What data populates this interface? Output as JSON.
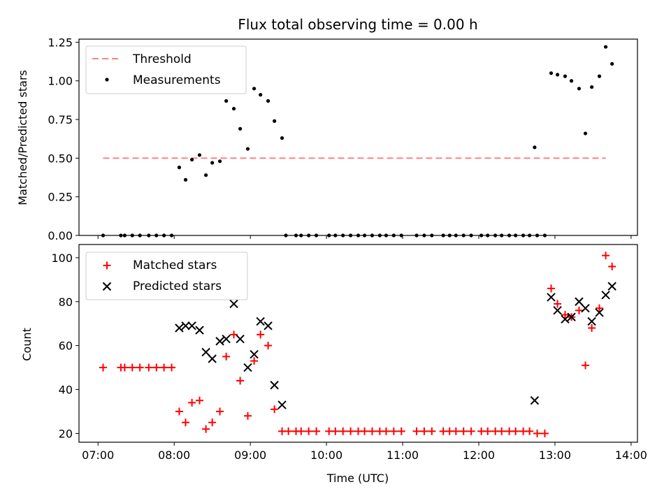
{
  "chart_data": [
    {
      "type": "scatter",
      "title": "Flux total observing time = 0.00 h",
      "xlabel": "",
      "ylabel": "Matched/Predicted stars",
      "xlim": [
        "06:45",
        "14:05"
      ],
      "ylim": [
        0,
        1.27
      ],
      "x_ticks": [
        "07:00",
        "08:00",
        "09:00",
        "10:00",
        "11:00",
        "12:00",
        "13:00",
        "14:00"
      ],
      "y_ticks": [
        "0.00",
        "0.25",
        "0.50",
        "0.75",
        "1.00",
        "1.25"
      ],
      "legend_position": "top-left",
      "series": [
        {
          "name": "Threshold",
          "kind": "dashed-line",
          "color": "#ff8080",
          "points": [
            [
              "07:04",
              0.5
            ],
            [
              "13:40",
              0.5
            ]
          ]
        },
        {
          "name": "Measurements",
          "kind": "dots",
          "color": "#000000",
          "points": [
            [
              "07:04",
              0
            ],
            [
              "07:18",
              0
            ],
            [
              "07:21",
              0
            ],
            [
              "07:27",
              0
            ],
            [
              "07:33",
              0
            ],
            [
              "07:40",
              0
            ],
            [
              "07:46",
              0
            ],
            [
              "07:52",
              0
            ],
            [
              "07:58",
              0
            ],
            [
              "08:04",
              0.44
            ],
            [
              "08:09",
              0.36
            ],
            [
              "08:14",
              0.49
            ],
            [
              "08:20",
              0.52
            ],
            [
              "08:25",
              0.39
            ],
            [
              "08:30",
              0.47
            ],
            [
              "08:36",
              0.48
            ],
            [
              "08:41",
              0.87
            ],
            [
              "08:47",
              0.82
            ],
            [
              "08:52",
              0.69
            ],
            [
              "08:58",
              0.56
            ],
            [
              "09:03",
              0.95
            ],
            [
              "09:08",
              0.91
            ],
            [
              "09:14",
              0.87
            ],
            [
              "09:19",
              0.74
            ],
            [
              "09:25",
              0.63
            ],
            [
              "09:28",
              0
            ],
            [
              "09:36",
              0
            ],
            [
              "09:40",
              0
            ],
            [
              "09:46",
              0
            ],
            [
              "09:52",
              0
            ],
            [
              "10:02",
              0
            ],
            [
              "10:07",
              0
            ],
            [
              "10:13",
              0
            ],
            [
              "10:19",
              0
            ],
            [
              "10:25",
              0
            ],
            [
              "10:30",
              0
            ],
            [
              "10:36",
              0
            ],
            [
              "10:42",
              0
            ],
            [
              "10:47",
              0
            ],
            [
              "10:53",
              0
            ],
            [
              "10:59",
              0
            ],
            [
              "11:11",
              0
            ],
            [
              "11:17",
              0
            ],
            [
              "11:23",
              0
            ],
            [
              "11:32",
              0
            ],
            [
              "11:37",
              0
            ],
            [
              "11:42",
              0
            ],
            [
              "11:48",
              0
            ],
            [
              "11:54",
              0
            ],
            [
              "12:02",
              0
            ],
            [
              "12:07",
              0
            ],
            [
              "12:13",
              0
            ],
            [
              "12:18",
              0
            ],
            [
              "12:24",
              0
            ],
            [
              "12:29",
              0
            ],
            [
              "12:35",
              0
            ],
            [
              "12:40",
              0
            ],
            [
              "12:46",
              0
            ],
            [
              "12:52",
              0
            ],
            [
              "12:44",
              0.57
            ],
            [
              "12:57",
              1.05
            ],
            [
              "13:02",
              1.04
            ],
            [
              "13:08",
              1.03
            ],
            [
              "13:13",
              1.0
            ],
            [
              "13:19",
              0.95
            ],
            [
              "13:24",
              0.66
            ],
            [
              "13:29",
              0.96
            ],
            [
              "13:35",
              1.03
            ],
            [
              "13:40",
              1.22
            ],
            [
              "13:45",
              1.11
            ]
          ]
        }
      ]
    },
    {
      "type": "scatter",
      "xlabel": "Time (UTC)",
      "ylabel": "Count",
      "xlim": [
        "06:45",
        "14:05"
      ],
      "ylim": [
        16,
        106
      ],
      "x_ticks": [
        "07:00",
        "08:00",
        "09:00",
        "10:00",
        "11:00",
        "12:00",
        "13:00",
        "14:00"
      ],
      "y_ticks": [
        "20",
        "40",
        "60",
        "80",
        "100"
      ],
      "legend_position": "top-left",
      "series": [
        {
          "name": "Matched stars",
          "kind": "plus",
          "color": "#ff0000",
          "points": [
            [
              "07:04",
              50
            ],
            [
              "07:18",
              50
            ],
            [
              "07:21",
              50
            ],
            [
              "07:27",
              50
            ],
            [
              "07:33",
              50
            ],
            [
              "07:40",
              50
            ],
            [
              "07:46",
              50
            ],
            [
              "07:52",
              50
            ],
            [
              "07:58",
              50
            ],
            [
              "08:04",
              30
            ],
            [
              "08:09",
              25
            ],
            [
              "08:14",
              34
            ],
            [
              "08:20",
              35
            ],
            [
              "08:25",
              22
            ],
            [
              "08:30",
              25
            ],
            [
              "08:36",
              30
            ],
            [
              "08:41",
              55
            ],
            [
              "08:47",
              65
            ],
            [
              "08:52",
              44
            ],
            [
              "08:58",
              28
            ],
            [
              "09:03",
              53
            ],
            [
              "09:08",
              65
            ],
            [
              "09:14",
              60
            ],
            [
              "09:19",
              31
            ],
            [
              "09:25",
              21
            ],
            [
              "09:30",
              21
            ],
            [
              "09:36",
              21
            ],
            [
              "09:40",
              21
            ],
            [
              "09:46",
              21
            ],
            [
              "09:52",
              21
            ],
            [
              "10:02",
              21
            ],
            [
              "10:07",
              21
            ],
            [
              "10:13",
              21
            ],
            [
              "10:19",
              21
            ],
            [
              "10:25",
              21
            ],
            [
              "10:30",
              21
            ],
            [
              "10:36",
              21
            ],
            [
              "10:42",
              21
            ],
            [
              "10:47",
              21
            ],
            [
              "10:53",
              21
            ],
            [
              "10:59",
              21
            ],
            [
              "11:11",
              21
            ],
            [
              "11:17",
              21
            ],
            [
              "11:23",
              21
            ],
            [
              "11:32",
              21
            ],
            [
              "11:37",
              21
            ],
            [
              "11:42",
              21
            ],
            [
              "11:48",
              21
            ],
            [
              "11:54",
              21
            ],
            [
              "12:02",
              21
            ],
            [
              "12:07",
              21
            ],
            [
              "12:13",
              21
            ],
            [
              "12:18",
              21
            ],
            [
              "12:24",
              21
            ],
            [
              "12:29",
              21
            ],
            [
              "12:35",
              21
            ],
            [
              "12:40",
              21
            ],
            [
              "12:46",
              20
            ],
            [
              "12:52",
              20
            ],
            [
              "12:57",
              86
            ],
            [
              "13:02",
              79
            ],
            [
              "13:08",
              74
            ],
            [
              "13:13",
              73
            ],
            [
              "13:19",
              76
            ],
            [
              "13:24",
              51
            ],
            [
              "13:29",
              68
            ],
            [
              "13:35",
              77
            ],
            [
              "13:40",
              101
            ],
            [
              "13:45",
              96
            ]
          ]
        },
        {
          "name": "Predicted stars",
          "kind": "x",
          "color": "#000000",
          "points": [
            [
              "08:04",
              68
            ],
            [
              "08:09",
              69
            ],
            [
              "08:14",
              69
            ],
            [
              "08:20",
              67
            ],
            [
              "08:25",
              57
            ],
            [
              "08:30",
              54
            ],
            [
              "08:36",
              62
            ],
            [
              "08:41",
              63
            ],
            [
              "08:47",
              79
            ],
            [
              "08:52",
              63
            ],
            [
              "08:58",
              50
            ],
            [
              "09:03",
              56
            ],
            [
              "09:08",
              71
            ],
            [
              "09:14",
              69
            ],
            [
              "09:19",
              42
            ],
            [
              "09:25",
              33
            ],
            [
              "12:44",
              35
            ],
            [
              "12:57",
              82
            ],
            [
              "13:02",
              76
            ],
            [
              "13:08",
              72
            ],
            [
              "13:13",
              73
            ],
            [
              "13:19",
              80
            ],
            [
              "13:24",
              77
            ],
            [
              "13:29",
              71
            ],
            [
              "13:35",
              75
            ],
            [
              "13:40",
              83
            ],
            [
              "13:45",
              87
            ]
          ]
        }
      ]
    }
  ]
}
